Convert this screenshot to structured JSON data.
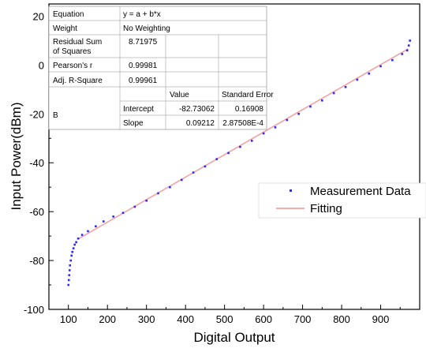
{
  "chart_data": {
    "type": "scatter",
    "xlabel": "Digital Output",
    "ylabel": "Input Power(dBm)",
    "xlim": [
      50,
      1000
    ],
    "ylim": [
      -100,
      25
    ],
    "xticks": [
      100,
      200,
      300,
      400,
      500,
      600,
      700,
      800,
      900
    ],
    "yticks": [
      -100,
      -80,
      -60,
      -40,
      -20,
      0,
      20
    ],
    "grid": false,
    "legend_position": "right",
    "series": [
      {
        "name": "Measurement Data",
        "kind": "scatter",
        "color": "#2a2aff",
        "x": [
          100,
          101,
          102,
          103,
          104,
          106,
          108,
          110,
          113,
          116,
          120,
          125,
          135,
          150,
          170,
          190,
          215,
          240,
          270,
          300,
          330,
          360,
          390,
          420,
          450,
          480,
          510,
          540,
          570,
          600,
          630,
          660,
          690,
          720,
          750,
          780,
          810,
          840,
          870,
          900,
          930,
          955,
          968,
          972,
          975
        ],
        "y": [
          -90,
          -88,
          -86,
          -84,
          -82,
          -80,
          -78,
          -76.5,
          -75,
          -73.5,
          -72.5,
          -71,
          -69.5,
          -68,
          -66,
          -64,
          -62,
          -60.5,
          -58,
          -55.5,
          -52.5,
          -50,
          -47,
          -44,
          -41.5,
          -38.5,
          -36,
          -33.5,
          -31,
          -28,
          -25.5,
          -22.5,
          -20,
          -17,
          -14.5,
          -11.5,
          -9,
          -6,
          -3.5,
          -0.5,
          2,
          4.5,
          6,
          8,
          10
        ]
      },
      {
        "name": "Fitting",
        "kind": "line",
        "color": "#f2a2a2",
        "x": [
          125,
          970
        ],
        "y": [
          -71.2,
          6.6
        ]
      }
    ],
    "stats_table": {
      "rows": [
        {
          "label": "Equation",
          "value": "y = a + b*x"
        },
        {
          "label": "Weight",
          "value": "No Weighting"
        },
        {
          "label": "Residual Sum of Squares",
          "label_lines": [
            "Residual Sum",
            "of Squares"
          ],
          "value": "8.71975"
        },
        {
          "label": "Pearson's r",
          "value": "0.99981"
        },
        {
          "label": "Adj. R-Square",
          "value": "0.99961"
        }
      ],
      "param_header": {
        "value": "Value",
        "error": "Standard Error"
      },
      "param_group": "B",
      "params": [
        {
          "name": "Intercept",
          "value": "-82.73062",
          "error": "0.16908"
        },
        {
          "name": "Slope",
          "value": "0.09212",
          "error": "2.87508E-4"
        }
      ]
    }
  }
}
